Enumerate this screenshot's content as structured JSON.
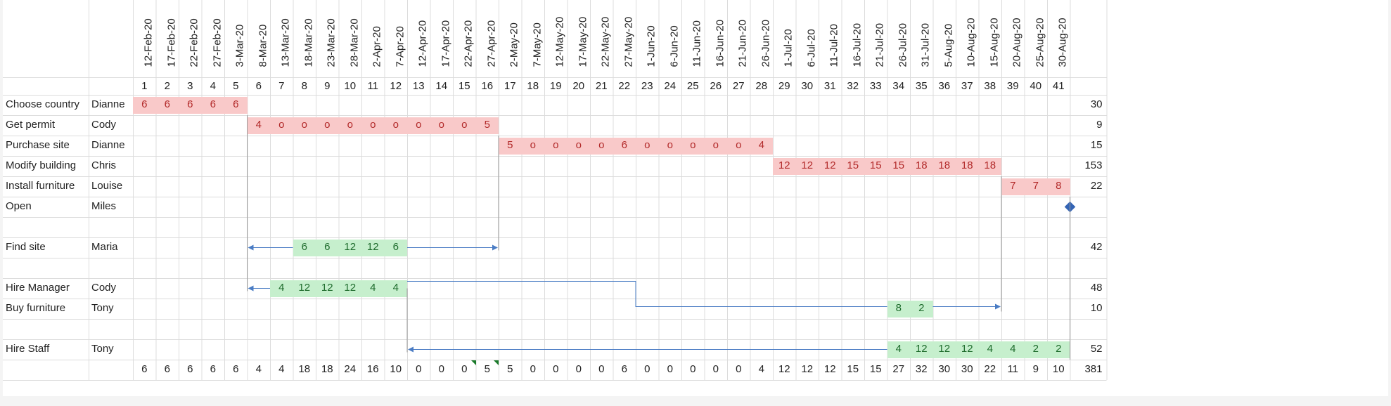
{
  "dates": [
    "12-Feb-20",
    "17-Feb-20",
    "22-Feb-20",
    "27-Feb-20",
    "3-Mar-20",
    "8-Mar-20",
    "13-Mar-20",
    "18-Mar-20",
    "23-Mar-20",
    "28-Mar-20",
    "2-Apr-20",
    "7-Apr-20",
    "12-Apr-20",
    "17-Apr-20",
    "22-Apr-20",
    "27-Apr-20",
    "2-May-20",
    "7-May-20",
    "12-May-20",
    "17-May-20",
    "22-May-20",
    "27-May-20",
    "1-Jun-20",
    "6-Jun-20",
    "11-Jun-20",
    "16-Jun-20",
    "21-Jun-20",
    "26-Jun-20",
    "1-Jul-20",
    "6-Jul-20",
    "11-Jul-20",
    "16-Jul-20",
    "21-Jul-20",
    "26-Jul-20",
    "31-Jul-20",
    "5-Aug-20",
    "10-Aug-20",
    "15-Aug-20",
    "20-Aug-20",
    "25-Aug-20",
    "30-Aug-20"
  ],
  "period_numbers": [
    "1",
    "2",
    "3",
    "4",
    "5",
    "6",
    "7",
    "8",
    "9",
    "10",
    "11",
    "12",
    "13",
    "14",
    "15",
    "16",
    "17",
    "18",
    "19",
    "20",
    "21",
    "22",
    "23",
    "24",
    "25",
    "26",
    "27",
    "28",
    "29",
    "30",
    "31",
    "32",
    "33",
    "34",
    "35",
    "36",
    "37",
    "38",
    "39",
    "40",
    "41"
  ],
  "tasks": [
    {
      "name": "Choose country",
      "owner": "Dianne",
      "total": "30",
      "color": "red",
      "start": 1,
      "values": [
        "6",
        "6",
        "6",
        "6",
        "6"
      ]
    },
    {
      "name": "Get permit",
      "owner": "Cody",
      "total": "9",
      "color": "red",
      "start": 6,
      "values": [
        "4",
        "o",
        "o",
        "o",
        "o",
        "o",
        "o",
        "o",
        "o",
        "o",
        "5"
      ]
    },
    {
      "name": "Purchase site",
      "owner": "Dianne",
      "total": "15",
      "color": "red",
      "start": 17,
      "values": [
        "5",
        "o",
        "o",
        "o",
        "o",
        "6",
        "o",
        "o",
        "o",
        "o",
        "o",
        "4"
      ]
    },
    {
      "name": "Modify building",
      "owner": "Chris",
      "total": "153",
      "color": "red",
      "start": 29,
      "values": [
        "12",
        "12",
        "12",
        "15",
        "15",
        "15",
        "18",
        "18",
        "18",
        "18"
      ]
    },
    {
      "name": "Install furniture",
      "owner": "Louise",
      "total": "22",
      "color": "red",
      "start": 39,
      "values": [
        "7",
        "7",
        "8"
      ]
    },
    {
      "name": "Open",
      "owner": "Miles",
      "total": "",
      "color": "none",
      "start": 0,
      "values": [],
      "milestone": true
    },
    {
      "name": "",
      "owner": "",
      "total": "",
      "color": "none",
      "start": 0,
      "values": []
    },
    {
      "name": "Find site",
      "owner": "Maria",
      "total": "42",
      "color": "green",
      "start": 8,
      "values": [
        "6",
        "6",
        "12",
        "12",
        "6"
      ]
    },
    {
      "name": "",
      "owner": "",
      "total": "",
      "color": "none",
      "start": 0,
      "values": []
    },
    {
      "name": "Hire Manager",
      "owner": "Cody",
      "total": "48",
      "color": "green",
      "start": 7,
      "values": [
        "4",
        "12",
        "12",
        "12",
        "4",
        "4"
      ]
    },
    {
      "name": "Buy furniture",
      "owner": "Tony",
      "total": "10",
      "color": "green",
      "start": 34,
      "values": [
        "8",
        "2"
      ]
    },
    {
      "name": "",
      "owner": "",
      "total": "",
      "color": "none",
      "start": 0,
      "values": []
    },
    {
      "name": "Hire Staff",
      "owner": "Tony",
      "total": "52",
      "color": "green",
      "start": 34,
      "values": [
        "4",
        "12",
        "12",
        "12",
        "4",
        "4",
        "2",
        "2"
      ]
    }
  ],
  "column_totals": [
    "6",
    "6",
    "6",
    "6",
    "6",
    "4",
    "4",
    "18",
    "18",
    "24",
    "16",
    "10",
    "0",
    "0",
    "0",
    "5",
    "5",
    "0",
    "0",
    "0",
    "0",
    "6",
    "0",
    "0",
    "0",
    "0",
    "0",
    "4",
    "12",
    "12",
    "12",
    "15",
    "15",
    "27",
    "32",
    "30",
    "30",
    "22",
    "11",
    "9",
    "10"
  ],
  "grand_total": "381",
  "colors": {
    "red_fill": "#f9c9c9",
    "green_fill": "#c6efcd",
    "link_line": "#4a7cc4",
    "milestone": "#3464b4",
    "gridline": "#dcdcdc"
  }
}
